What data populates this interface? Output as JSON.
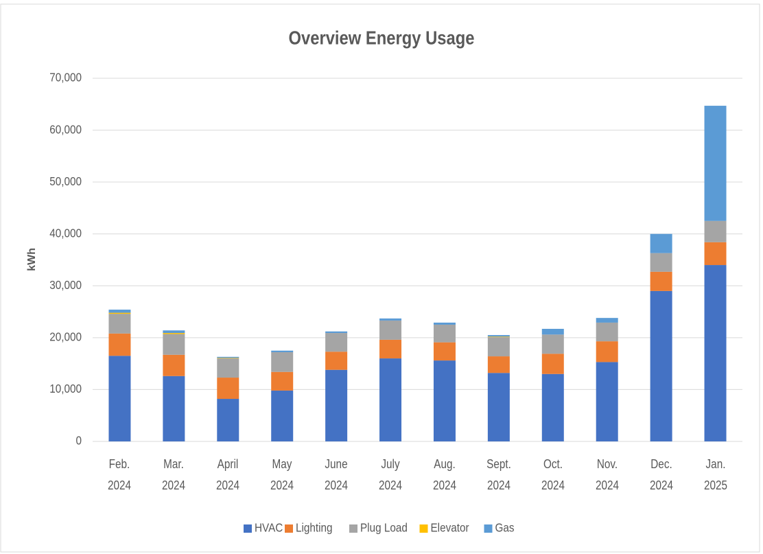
{
  "chart_data": {
    "type": "stacked_bar",
    "title": "Overview Energy Usage",
    "y_label": "kWh",
    "categories": [
      "Feb. 2024",
      "Mar. 2024",
      "April 2024",
      "May 2024",
      "June 2024",
      "July 2024",
      "Aug. 2024",
      "Sept. 2024",
      "Oct. 2024",
      "Nov. 2024",
      "Dec. 2024",
      "Jan. 2025"
    ],
    "series": [
      {
        "name": "HVAC",
        "color": "#4472c4",
        "values": [
          16500,
          12600,
          8200,
          9800,
          13800,
          16000,
          15600,
          13200,
          13000,
          15300,
          29000,
          34000
        ]
      },
      {
        "name": "Lighting",
        "color": "#ed7d31",
        "values": [
          4300,
          4100,
          4100,
          3600,
          3500,
          3600,
          3500,
          3200,
          3900,
          4000,
          3700,
          4400
        ]
      },
      {
        "name": "Plug Load",
        "color": "#a5a5a5",
        "values": [
          3800,
          4000,
          3700,
          3800,
          3600,
          3700,
          3400,
          3700,
          3700,
          3600,
          3600,
          4100
        ]
      },
      {
        "name": "Elevator",
        "color": "#ffc000",
        "values": [
          200,
          200,
          100,
          0,
          0,
          0,
          0,
          100,
          0,
          0,
          0,
          0
        ]
      },
      {
        "name": "Gas",
        "color": "#5b9bd5",
        "values": [
          600,
          500,
          200,
          300,
          300,
          400,
          400,
          300,
          1100,
          900,
          3700,
          22200
        ]
      }
    ],
    "ylim": [
      0,
      70000
    ],
    "yticks": [
      0,
      {
        "value": 10000,
        "label": "10,000"
      },
      {
        "value": 20000,
        "label": "20,000"
      },
      {
        "value": 30000,
        "label": "30,000"
      },
      {
        "value": 40000,
        "label": "40,000"
      },
      {
        "value": 50000,
        "label": "50,000"
      },
      {
        "value": 60000,
        "label": "60,000"
      },
      {
        "value": 70000,
        "label": "70,000"
      }
    ],
    "grid": true,
    "legend": "bottom"
  }
}
